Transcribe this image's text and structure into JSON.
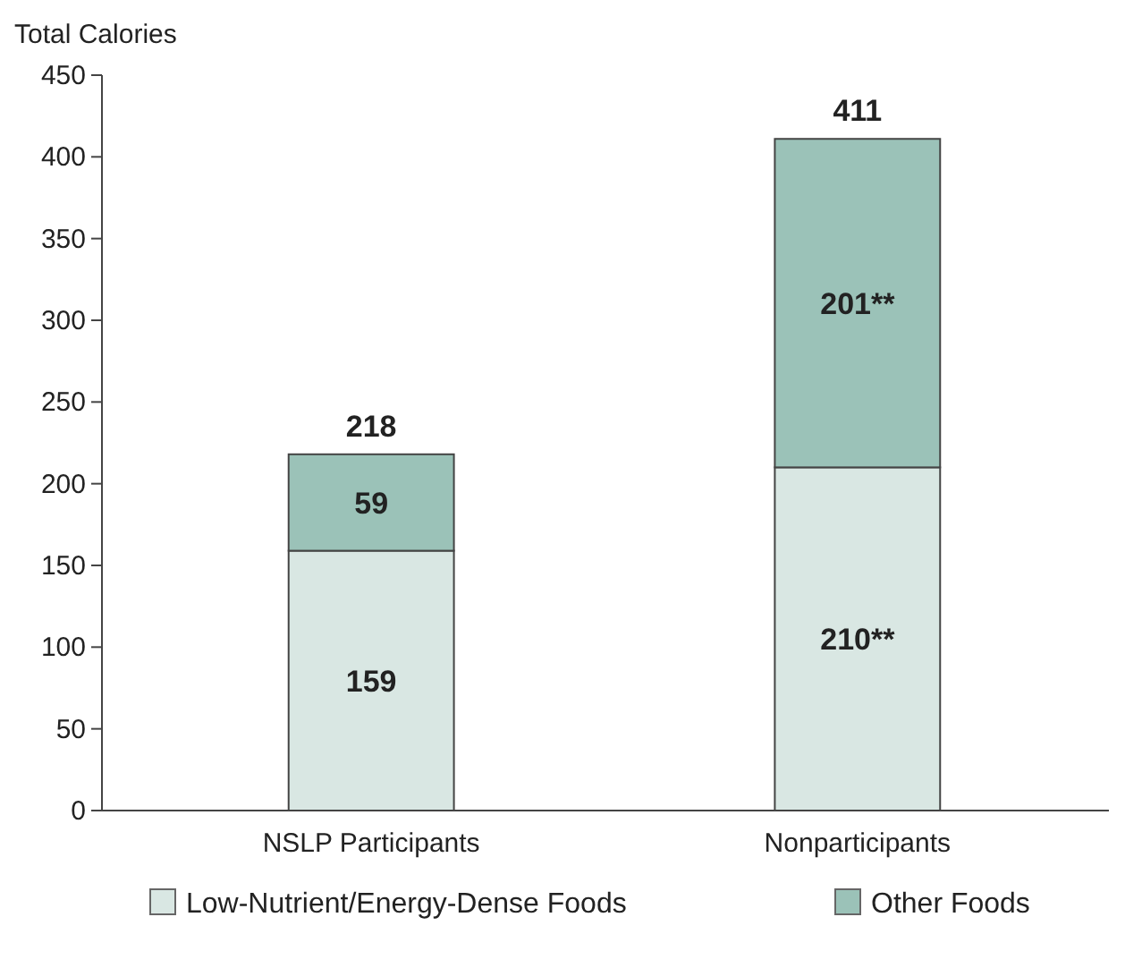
{
  "chart_data": {
    "type": "bar",
    "ylabel": "Total Calories",
    "categories": [
      "NSLP Participants",
      "Nonparticipants"
    ],
    "stacked": true,
    "series": [
      {
        "name": "Low-Nutrient/Energy-Dense Foods",
        "color": "#d9e7e3",
        "values": [
          159,
          210
        ],
        "value_labels": [
          "159",
          "210**"
        ]
      },
      {
        "name": "Other Foods",
        "color": "#9bc2b8",
        "values": [
          59,
          201
        ],
        "value_labels": [
          "59",
          "201**"
        ]
      }
    ],
    "totals": [
      "218",
      "411"
    ],
    "ylim": [
      0,
      450
    ],
    "yticks": [
      0,
      50,
      100,
      150,
      200,
      250,
      300,
      350,
      400,
      450
    ],
    "legend": "bottom",
    "grid": false
  }
}
